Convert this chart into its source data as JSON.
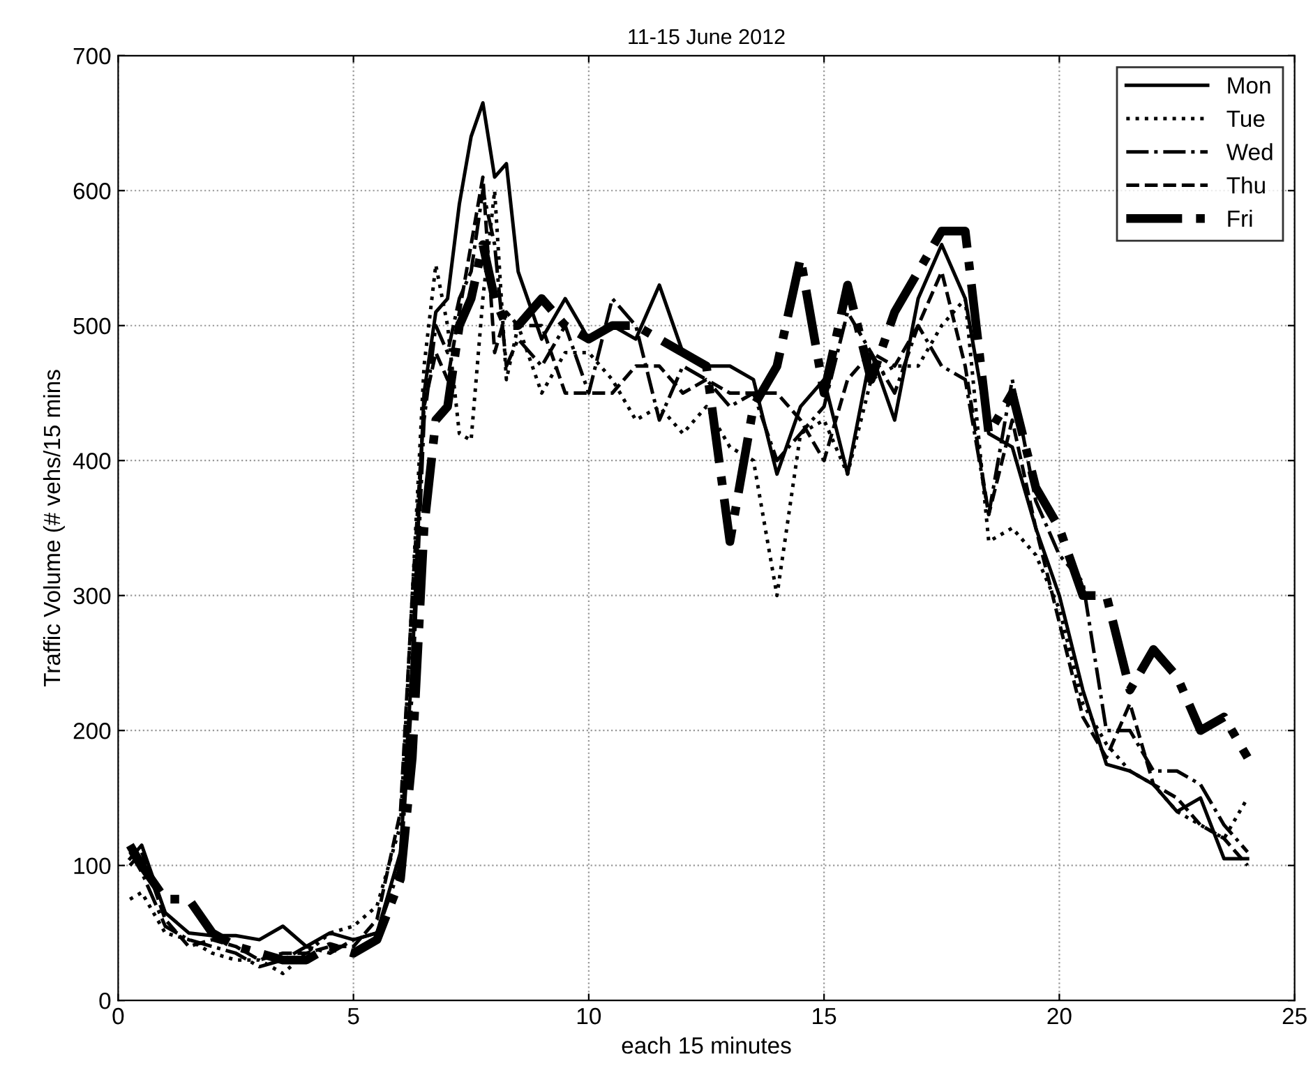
{
  "chart_data": {
    "type": "line",
    "title": "11-15 June 2012",
    "xlabel": "each 15 minutes",
    "ylabel": "Traffic Volume (# vehs/15 mins",
    "x": [
      0.25,
      0.5,
      1,
      1.5,
      2,
      2.5,
      3,
      3.5,
      4,
      4.5,
      5,
      5.5,
      6,
      6.25,
      6.5,
      6.75,
      7,
      7.25,
      7.5,
      7.75,
      8,
      8.25,
      8.5,
      9,
      9.5,
      10,
      10.5,
      11,
      11.5,
      12,
      12.5,
      13,
      13.5,
      14,
      14.5,
      15,
      15.5,
      16,
      16.5,
      17,
      17.5,
      18,
      18.5,
      19,
      19.5,
      20,
      20.5,
      21,
      21.5,
      22,
      22.5,
      23,
      23.5,
      24
    ],
    "series": [
      {
        "name": "Mon",
        "color": "#000000",
        "line_style": "solid",
        "values": [
          105,
          115,
          65,
          50,
          48,
          48,
          45,
          55,
          40,
          50,
          45,
          50,
          110,
          250,
          450,
          510,
          520,
          590,
          640,
          665,
          610,
          620,
          540,
          490,
          520,
          490,
          500,
          490,
          530,
          480,
          470,
          470,
          460,
          390,
          440,
          460,
          390,
          480,
          430,
          520,
          560,
          520,
          420,
          410,
          350,
          300,
          230,
          175,
          170,
          160,
          140,
          150,
          105,
          105
        ]
      },
      {
        "name": "Tue",
        "color": "#000000",
        "line_style": "dotted",
        "values": [
          75,
          80,
          50,
          45,
          35,
          30,
          30,
          20,
          35,
          50,
          55,
          70,
          130,
          300,
          470,
          545,
          500,
          420,
          415,
          520,
          600,
          460,
          500,
          450,
          480,
          480,
          460,
          430,
          440,
          420,
          440,
          410,
          400,
          300,
          420,
          430,
          390,
          460,
          470,
          470,
          500,
          520,
          340,
          350,
          330,
          290,
          220,
          190,
          170,
          160,
          140,
          130,
          120,
          150
        ]
      },
      {
        "name": "Wed",
        "color": "#000000",
        "line_style": "dashdot",
        "values": [
          110,
          95,
          55,
          45,
          40,
          35,
          25,
          30,
          40,
          35,
          45,
          50,
          100,
          230,
          430,
          500,
          480,
          520,
          540,
          600,
          560,
          470,
          490,
          470,
          500,
          450,
          520,
          500,
          430,
          470,
          460,
          440,
          450,
          400,
          420,
          440,
          510,
          480,
          450,
          500,
          470,
          460,
          360,
          460,
          370,
          330,
          310,
          200,
          200,
          170,
          170,
          160,
          130,
          110
        ]
      },
      {
        "name": "Thu",
        "color": "#000000",
        "line_style": "dashed",
        "values": [
          100,
          110,
          60,
          40,
          45,
          40,
          30,
          35,
          35,
          40,
          40,
          60,
          140,
          300,
          440,
          480,
          460,
          510,
          560,
          610,
          480,
          510,
          500,
          500,
          450,
          450,
          450,
          470,
          470,
          450,
          460,
          450,
          450,
          450,
          430,
          400,
          460,
          480,
          470,
          500,
          540,
          470,
          360,
          430,
          350,
          280,
          210,
          180,
          220,
          160,
          150,
          130,
          120,
          100
        ]
      },
      {
        "name": "Fri",
        "color": "#000000",
        "line_style": "heavy dashdot",
        "values": [
          115,
          100,
          75,
          75,
          50,
          40,
          35,
          30,
          30,
          40,
          35,
          45,
          90,
          180,
          350,
          430,
          440,
          500,
          520,
          560,
          520,
          500,
          500,
          520,
          500,
          490,
          500,
          500,
          490,
          480,
          470,
          340,
          440,
          470,
          550,
          450,
          530,
          460,
          510,
          540,
          570,
          570,
          420,
          450,
          380,
          350,
          300,
          300,
          230,
          260,
          240,
          200,
          210,
          180
        ]
      }
    ],
    "xlim": [
      0,
      25
    ],
    "xticks": [
      0,
      5,
      10,
      15,
      20,
      25
    ],
    "ylim": [
      0,
      700
    ],
    "yticks": [
      0,
      100,
      200,
      300,
      400,
      500,
      600,
      700
    ],
    "grid": true,
    "legend": "top right"
  }
}
